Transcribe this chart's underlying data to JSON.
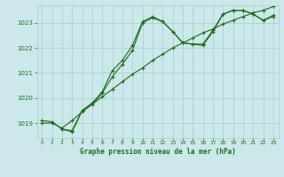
{
  "background_color": "#cce8ea",
  "grid_color": "#aacccc",
  "line_color": "#1a6e1a",
  "xlabel": "Graphe pression niveau de la mer (hPa)",
  "xlim": [
    -0.5,
    23.5
  ],
  "ylim": [
    1018.4,
    1023.7
  ],
  "yticks": [
    1019,
    1020,
    1021,
    1022,
    1023
  ],
  "xticks": [
    0,
    1,
    2,
    3,
    4,
    5,
    6,
    7,
    8,
    9,
    10,
    11,
    12,
    13,
    14,
    15,
    16,
    17,
    18,
    19,
    20,
    21,
    22,
    23
  ],
  "series1": {
    "x": [
      0,
      1,
      2,
      3,
      4,
      5,
      6,
      7,
      8,
      9,
      10,
      11,
      12,
      13,
      14,
      15,
      16,
      17,
      18,
      19,
      20,
      21,
      22,
      23
    ],
    "y": [
      1019.1,
      1019.05,
      1018.75,
      1018.7,
      1019.5,
      1019.8,
      1020.25,
      1021.1,
      1021.5,
      1022.1,
      1023.05,
      1023.25,
      1023.05,
      1022.65,
      1022.2,
      1022.15,
      1022.1,
      1022.65,
      1023.35,
      1023.5,
      1023.5,
      1023.35,
      1023.1,
      1023.3
    ]
  },
  "series2": {
    "x": [
      0,
      1,
      2,
      3,
      4,
      5,
      6,
      7,
      8,
      9,
      10,
      11,
      12,
      13,
      14,
      15,
      16,
      17,
      18,
      19,
      20,
      21,
      22,
      23
    ],
    "y": [
      1019.0,
      1019.0,
      1018.8,
      1019.1,
      1019.45,
      1019.75,
      1020.05,
      1020.35,
      1020.65,
      1020.95,
      1021.2,
      1021.5,
      1021.75,
      1022.0,
      1022.2,
      1022.4,
      1022.6,
      1022.75,
      1022.95,
      1023.1,
      1023.25,
      1023.4,
      1023.5,
      1023.65
    ]
  },
  "series3": {
    "x": [
      2,
      3,
      4,
      5,
      6,
      7,
      8,
      9,
      10,
      11,
      12,
      13,
      14,
      15,
      16,
      17,
      18,
      19,
      20,
      21,
      22,
      23
    ],
    "y": [
      1018.75,
      1018.65,
      1019.5,
      1019.75,
      1020.2,
      1020.85,
      1021.35,
      1021.9,
      1023.0,
      1023.2,
      1023.05,
      1022.65,
      1022.2,
      1022.15,
      1022.15,
      1022.7,
      1023.35,
      1023.5,
      1023.5,
      1023.35,
      1023.1,
      1023.25
    ]
  }
}
